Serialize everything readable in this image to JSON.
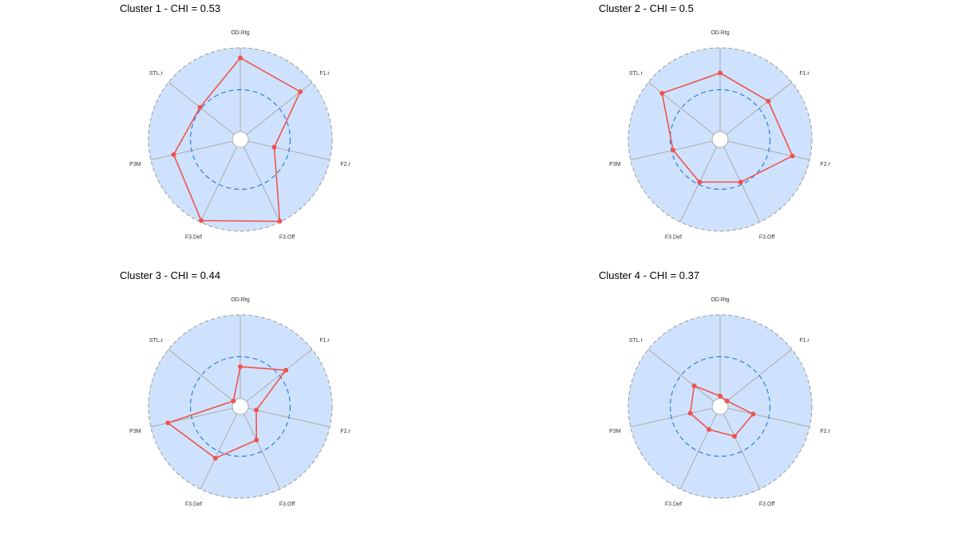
{
  "chart_data": [
    {
      "type": "radar",
      "title": "Cluster 1 - CHI = 0.53",
      "axes": [
        "OD.Rtg",
        "F1.r",
        "F2.r",
        "F3.Off",
        "F3.Def",
        "P3M",
        "STL.r"
      ],
      "values": [
        0.88,
        0.82,
        0.32,
        0.99,
        0.98,
        0.72,
        0.52
      ],
      "range": [
        0,
        1
      ],
      "reference_circle": 0.5
    },
    {
      "type": "radar",
      "title": "Cluster 2 - CHI = 0.5",
      "axes": [
        "OD.Rtg",
        "F1.r",
        "F2.r",
        "F3.Off",
        "F3.Def",
        "P3M",
        "STL.r"
      ],
      "values": [
        0.7,
        0.64,
        0.79,
        0.47,
        0.47,
        0.48,
        0.79
      ],
      "range": [
        0,
        1
      ],
      "reference_circle": 0.5
    },
    {
      "type": "radar",
      "title": "Cluster 3 - CHI = 0.44",
      "axes": [
        "OD.Rtg",
        "F1.r",
        "F2.r",
        "F3.Off",
        "F3.Def",
        "P3M",
        "STL.r"
      ],
      "values": [
        0.38,
        0.6,
        0.1,
        0.35,
        0.59,
        0.79,
        0.01
      ],
      "range": [
        0,
        1
      ],
      "reference_circle": 0.5
    },
    {
      "type": "radar",
      "title": "Cluster 4 - CHI = 0.37",
      "axes": [
        "OD.Rtg",
        "F1.r",
        "F2.r",
        "F3.Off",
        "F3.Def",
        "P3M",
        "STL.r"
      ],
      "values": [
        0.03,
        0.01,
        0.31,
        0.3,
        0.21,
        0.27,
        0.3
      ],
      "range": [
        0,
        1
      ],
      "reference_circle": 0.5
    }
  ],
  "colors": {
    "fill": "#cfe2fd",
    "line": "#f0524d",
    "ref": "#2a7de1",
    "spoke": "#aaaaaa",
    "outline": "#999999"
  }
}
